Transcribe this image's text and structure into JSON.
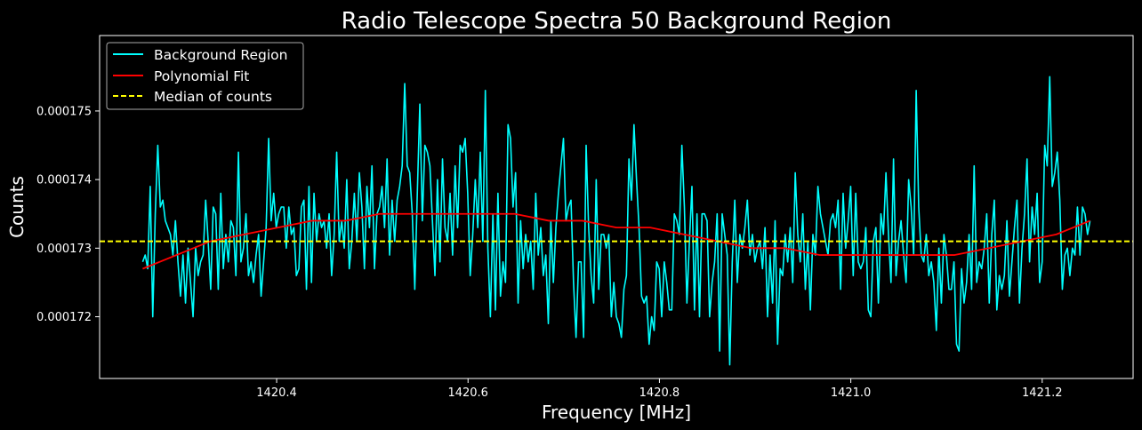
{
  "chart_data": {
    "type": "line",
    "title": "Radio Telescope Spectra 50 Background Region",
    "xlabel": "Frequency [MHz]",
    "ylabel": "Counts",
    "xlim": [
      1420.215,
      1421.295
    ],
    "ylim": [
      0.0001711,
      0.0001761
    ],
    "xticks": [
      1420.4,
      1420.6,
      1420.8,
      1421.0,
      1421.2
    ],
    "xtick_labels": [
      "1420.4",
      "1420.6",
      "1420.8",
      "1421.0",
      "1421.2"
    ],
    "yticks": [
      0.000172,
      0.000173,
      0.000174,
      0.000175
    ],
    "ytick_labels": [
      "0.000172",
      "0.000173",
      "0.000174",
      "0.000175"
    ],
    "grid": false,
    "legend_position": "top-left",
    "background_color": "#000000",
    "series": [
      {
        "name": "Background Region",
        "color": "#00ffff",
        "style": "solid",
        "x_start": 1420.26,
        "x_end": 1421.25,
        "values": [
          0.0001728,
          0.0001729,
          0.0001727,
          0.0001739,
          0.000172,
          0.0001735,
          0.0001745,
          0.0001736,
          0.0001737,
          0.0001734,
          0.0001733,
          0.0001732,
          0.0001729,
          0.0001734,
          0.0001728,
          0.0001723,
          0.0001729,
          0.0001722,
          0.000173,
          0.0001725,
          0.000172,
          0.000173,
          0.0001726,
          0.0001728,
          0.0001729,
          0.0001737,
          0.0001731,
          0.0001724,
          0.0001736,
          0.0001735,
          0.0001724,
          0.0001738,
          0.0001727,
          0.0001732,
          0.0001728,
          0.0001734,
          0.0001733,
          0.0001726,
          0.0001744,
          0.0001728,
          0.000173,
          0.0001735,
          0.0001726,
          0.0001728,
          0.0001725,
          0.0001729,
          0.0001732,
          0.0001723,
          0.0001728,
          0.0001733,
          0.0001746,
          0.0001734,
          0.0001738,
          0.0001733,
          0.0001735,
          0.0001736,
          0.0001736,
          0.000173,
          0.0001736,
          0.0001732,
          0.0001733,
          0.0001726,
          0.0001727,
          0.0001736,
          0.0001737,
          0.0001724,
          0.0001739,
          0.0001725,
          0.0001738,
          0.0001731,
          0.0001735,
          0.0001733,
          0.0001734,
          0.000173,
          0.0001735,
          0.0001726,
          0.0001732,
          0.0001744,
          0.0001731,
          0.0001734,
          0.000173,
          0.000174,
          0.0001727,
          0.0001731,
          0.0001738,
          0.0001731,
          0.0001741,
          0.0001736,
          0.0001727,
          0.0001739,
          0.0001733,
          0.0001742,
          0.0001727,
          0.0001735,
          0.0001736,
          0.0001739,
          0.0001733,
          0.0001743,
          0.0001729,
          0.0001737,
          0.0001731,
          0.0001737,
          0.0001739,
          0.0001742,
          0.0001754,
          0.0001742,
          0.0001741,
          0.0001735,
          0.0001724,
          0.0001738,
          0.0001751,
          0.0001734,
          0.0001745,
          0.0001744,
          0.0001742,
          0.0001734,
          0.0001726,
          0.000174,
          0.0001728,
          0.0001743,
          0.0001733,
          0.0001731,
          0.0001738,
          0.0001729,
          0.0001742,
          0.0001733,
          0.0001745,
          0.0001744,
          0.0001746,
          0.0001738,
          0.0001726,
          0.0001732,
          0.000174,
          0.0001733,
          0.0001744,
          0.0001731,
          0.0001753,
          0.000173,
          0.000172,
          0.0001735,
          0.0001721,
          0.0001738,
          0.0001723,
          0.0001728,
          0.0001725,
          0.0001748,
          0.0001746,
          0.0001736,
          0.0001741,
          0.0001722,
          0.0001734,
          0.0001727,
          0.0001732,
          0.0001728,
          0.0001731,
          0.0001724,
          0.0001738,
          0.0001729,
          0.0001733,
          0.0001726,
          0.0001729,
          0.0001719,
          0.0001734,
          0.0001725,
          0.0001733,
          0.0001738,
          0.0001742,
          0.0001746,
          0.0001734,
          0.0001736,
          0.0001737,
          0.0001725,
          0.0001717,
          0.0001728,
          0.0001728,
          0.0001717,
          0.0001745,
          0.0001733,
          0.0001726,
          0.0001722,
          0.000174,
          0.0001724,
          0.0001732,
          0.0001732,
          0.000173,
          0.0001732,
          0.000172,
          0.0001725,
          0.000172,
          0.0001719,
          0.0001717,
          0.0001724,
          0.0001726,
          0.0001743,
          0.0001737,
          0.0001748,
          0.000174,
          0.0001733,
          0.0001723,
          0.0001722,
          0.0001723,
          0.0001716,
          0.000172,
          0.0001718,
          0.0001728,
          0.0001727,
          0.000172,
          0.0001728,
          0.0001725,
          0.0001721,
          0.0001721,
          0.0001735,
          0.0001734,
          0.0001732,
          0.0001745,
          0.0001736,
          0.0001722,
          0.0001731,
          0.0001739,
          0.0001721,
          0.0001735,
          0.000172,
          0.0001735,
          0.0001735,
          0.0001734,
          0.000172,
          0.0001725,
          0.0001728,
          0.0001735,
          0.0001715,
          0.0001735,
          0.0001732,
          0.0001729,
          0.0001713,
          0.0001728,
          0.0001737,
          0.0001725,
          0.0001732,
          0.000173,
          0.0001733,
          0.0001737,
          0.0001729,
          0.0001732,
          0.0001728,
          0.000173,
          0.0001731,
          0.0001727,
          0.0001733,
          0.000172,
          0.0001729,
          0.0001722,
          0.0001734,
          0.0001716,
          0.0001727,
          0.0001726,
          0.0001732,
          0.0001728,
          0.0001733,
          0.0001725,
          0.0001741,
          0.0001732,
          0.0001728,
          0.0001735,
          0.0001724,
          0.0001731,
          0.0001721,
          0.0001732,
          0.0001729,
          0.0001739,
          0.0001735,
          0.0001733,
          0.0001731,
          0.0001729,
          0.0001734,
          0.0001735,
          0.0001733,
          0.0001737,
          0.0001724,
          0.0001738,
          0.000173,
          0.0001734,
          0.0001739,
          0.0001726,
          0.0001738,
          0.0001728,
          0.0001727,
          0.0001728,
          0.0001733,
          0.0001721,
          0.000172,
          0.0001731,
          0.0001733,
          0.0001722,
          0.0001735,
          0.0001732,
          0.0001741,
          0.0001732,
          0.0001725,
          0.0001743,
          0.0001726,
          0.0001731,
          0.0001734,
          0.0001729,
          0.0001725,
          0.000174,
          0.0001736,
          0.0001729,
          0.0001753,
          0.0001736,
          0.0001729,
          0.0001728,
          0.0001732,
          0.0001726,
          0.0001728,
          0.0001725,
          0.0001718,
          0.000173,
          0.0001722,
          0.0001732,
          0.0001729,
          0.0001724,
          0.0001724,
          0.0001728,
          0.0001716,
          0.0001715,
          0.0001727,
          0.0001722,
          0.0001725,
          0.0001732,
          0.0001724,
          0.0001742,
          0.0001725,
          0.0001728,
          0.0001727,
          0.000173,
          0.0001735,
          0.0001722,
          0.0001732,
          0.0001737,
          0.0001721,
          0.0001726,
          0.0001724,
          0.0001726,
          0.0001734,
          0.0001723,
          0.0001728,
          0.0001733,
          0.0001737,
          0.0001722,
          0.000173,
          0.0001735,
          0.0001743,
          0.0001728,
          0.0001736,
          0.0001732,
          0.0001738,
          0.0001725,
          0.0001728,
          0.0001745,
          0.0001742,
          0.0001755,
          0.0001739,
          0.0001741,
          0.0001744,
          0.0001737,
          0.0001724,
          0.0001729,
          0.000173,
          0.0001726,
          0.000173,
          0.0001729,
          0.0001736,
          0.0001729,
          0.0001736,
          0.0001735,
          0.0001732,
          0.0001734
        ]
      },
      {
        "name": "Polynomial Fit",
        "color": "#ff0000",
        "style": "solid",
        "x_start": 1420.26,
        "x_end": 1421.25,
        "values": [
          0.0001727,
          0.0001729,
          0.0001731,
          0.0001732,
          0.0001733,
          0.0001734,
          0.0001734,
          0.0001735,
          0.0001735,
          0.0001735,
          0.0001735,
          0.0001735,
          0.0001734,
          0.0001734,
          0.0001733,
          0.0001733,
          0.0001732,
          0.0001731,
          0.000173,
          0.000173,
          0.0001729,
          0.0001729,
          0.0001729,
          0.0001729,
          0.0001729,
          0.000173,
          0.0001731,
          0.0001732,
          0.0001734
        ]
      },
      {
        "name": "Median of counts",
        "color": "#ffff00",
        "style": "dashed",
        "value": 0.0001731
      }
    ]
  }
}
